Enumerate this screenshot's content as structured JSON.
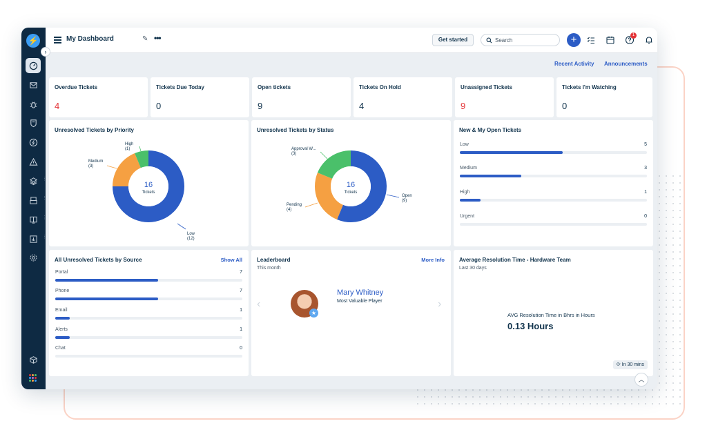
{
  "header": {
    "title": "My Dashboard",
    "get_started": "Get started",
    "search_placeholder": "Search",
    "notification_count": "1"
  },
  "subnav": {
    "recent_activity": "Recent Activity",
    "announcements": "Announcements"
  },
  "stats": [
    {
      "label": "Overdue Tickets",
      "value": "4",
      "alert": true
    },
    {
      "label": "Tickets Due Today",
      "value": "0",
      "alert": false
    },
    {
      "label": "Open tickets",
      "value": "9",
      "alert": false
    },
    {
      "label": "Tickets On Hold",
      "value": "4",
      "alert": false
    },
    {
      "label": "Unassigned Tickets",
      "value": "9",
      "alert": true
    },
    {
      "label": "Tickets I'm Watching",
      "value": "0",
      "alert": false
    }
  ],
  "priority_chart": {
    "title": "Unresolved Tickets by Priority",
    "center_value": "16",
    "center_label": "Tickets",
    "labels": [
      {
        "name": "High",
        "count": "(1)"
      },
      {
        "name": "Medium",
        "count": "(3)"
      },
      {
        "name": "Low",
        "count": "(12)"
      }
    ]
  },
  "status_chart": {
    "title": "Unresolved Tickets by Status",
    "center_value": "16",
    "center_label": "Tickets",
    "labels": [
      {
        "name": "Approval W...",
        "count": "(3)"
      },
      {
        "name": "Pending",
        "count": "(4)"
      },
      {
        "name": "Open",
        "count": "(9)"
      }
    ]
  },
  "open_tickets": {
    "title": "New & My Open Tickets",
    "rows": [
      {
        "name": "Low",
        "count": "5"
      },
      {
        "name": "Medium",
        "count": "3"
      },
      {
        "name": "High",
        "count": "1"
      },
      {
        "name": "Urgent",
        "count": "0"
      }
    ]
  },
  "source": {
    "title": "All Unresolved Tickets by Source",
    "link": "Show All",
    "rows": [
      {
        "name": "Portal",
        "count": "7"
      },
      {
        "name": "Phone",
        "count": "7"
      },
      {
        "name": "Email",
        "count": "1"
      },
      {
        "name": "Alerts",
        "count": "1"
      },
      {
        "name": "Chat",
        "count": "0"
      }
    ]
  },
  "leaderboard": {
    "title": "Leaderboard",
    "subtitle": "This month",
    "link": "More Info",
    "name": "Mary Whitney",
    "role": "Most Valuable Player"
  },
  "resolution": {
    "title": "Average Resolution Time - Hardware Team",
    "subtitle": "Last 30 days",
    "metric_label": "AVG Resolution Time in Bhrs in Hours",
    "metric_value": "0.13 Hours",
    "refresh": "In 30 mins"
  },
  "chart_data": [
    {
      "type": "pie",
      "title": "Unresolved Tickets by Priority",
      "categories": [
        "Low",
        "Medium",
        "High"
      ],
      "values": [
        12,
        3,
        1
      ],
      "colors": [
        "#2c5cc5",
        "#f5a042",
        "#4ac06a"
      ]
    },
    {
      "type": "pie",
      "title": "Unresolved Tickets by Status",
      "categories": [
        "Open",
        "Pending",
        "Approval W..."
      ],
      "values": [
        9,
        4,
        3
      ],
      "colors": [
        "#2c5cc5",
        "#f5a042",
        "#4ac06a"
      ]
    },
    {
      "type": "bar",
      "title": "New & My Open Tickets",
      "categories": [
        "Low",
        "Medium",
        "High",
        "Urgent"
      ],
      "values": [
        5,
        3,
        1,
        0
      ]
    },
    {
      "type": "bar",
      "title": "All Unresolved Tickets by Source",
      "categories": [
        "Portal",
        "Phone",
        "Email",
        "Alerts",
        "Chat"
      ],
      "values": [
        7,
        7,
        1,
        1,
        0
      ]
    }
  ],
  "colors": {
    "sidebar": "#0e2a43",
    "accent": "#2c5cc5",
    "alert": "#e43538",
    "orange": "#f5a042",
    "green": "#4ac06a"
  }
}
